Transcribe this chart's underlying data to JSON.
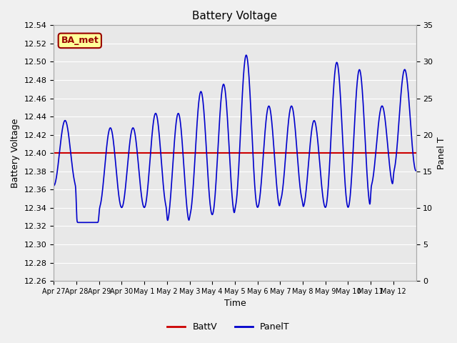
{
  "title": "Battery Voltage",
  "ylabel_left": "Battery Voltage",
  "ylabel_right": "Panel T",
  "xlabel": "Time",
  "ylim_left": [
    12.26,
    12.54
  ],
  "ylim_right": [
    0,
    35
  ],
  "yticks_left": [
    12.26,
    12.28,
    12.3,
    12.32,
    12.34,
    12.36,
    12.38,
    12.4,
    12.42,
    12.44,
    12.46,
    12.48,
    12.5,
    12.52,
    12.54
  ],
  "yticks_right": [
    0,
    5,
    10,
    15,
    20,
    25,
    30,
    35
  ],
  "battv_value": 12.4,
  "battv_color": "#cc0000",
  "panelt_color": "#0000cc",
  "bg_color": "#e8e8e8",
  "fig_bg_color": "#f0f0f0",
  "xtick_labels": [
    "Apr 27",
    "Apr 28",
    "Apr 29",
    "Apr 30",
    "May 1",
    "May 2",
    "May 3",
    "May 4",
    "May 5",
    "May 6",
    "May 7",
    "May 8",
    "May 9",
    "May 10",
    "May 11",
    "May 12"
  ],
  "annotation_text": "BA_met",
  "annotation_bg": "#ffff99",
  "annotation_border": "#990000",
  "legend_batt_color": "#cc0000",
  "legend_panel_color": "#0000cc",
  "days": 16,
  "samples_per_day": 96,
  "panel_t_peaks": [
    22,
    8,
    21,
    21,
    23,
    23,
    26,
    27,
    31,
    24,
    24,
    22,
    30,
    29,
    24,
    29
  ],
  "panel_t_troughs": [
    13,
    8,
    10,
    10,
    10,
    8,
    9,
    9,
    10,
    10,
    11,
    10,
    10,
    10,
    13,
    15
  ]
}
